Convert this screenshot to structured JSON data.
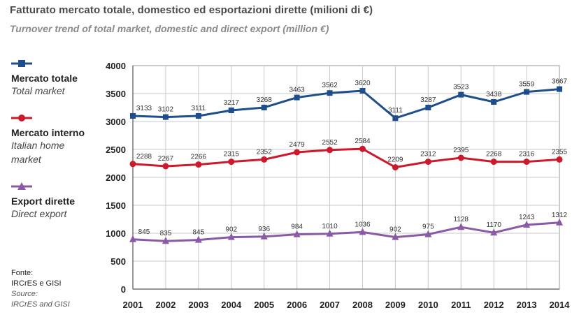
{
  "header": {
    "title": "Fatturato mercato totale, domestico ed esportazioni dirette (milioni di €)",
    "subtitle": "Turnover trend of total market, domestic and direct export (million €)"
  },
  "legend": [
    {
      "label": "Mercato totale",
      "sub": "Total market",
      "color": "#1f4e8c",
      "marker": "square"
    },
    {
      "label": "Mercato interno",
      "sub": "Italian home market",
      "color": "#cc1a2c",
      "marker": "circle"
    },
    {
      "label": "Export dirette",
      "sub": "Direct export",
      "color": "#8a5aa8",
      "marker": "triangle"
    }
  ],
  "source": {
    "label": "Fonte:",
    "text": "IRCrES e GISI",
    "label_en": "Source:",
    "text_en": "IRCrES and GISI"
  },
  "chart_data": {
    "type": "line",
    "x": [
      "2001",
      "2002",
      "2003",
      "2004",
      "2005",
      "2006",
      "2007",
      "2008",
      "2009",
      "2010",
      "2011",
      "2012",
      "2013",
      "2014"
    ],
    "ylim": [
      0,
      4000
    ],
    "yticks": [
      0,
      500,
      1000,
      1500,
      2000,
      2500,
      3000,
      3500,
      4000
    ],
    "grid": true,
    "series": [
      {
        "name": "Mercato totale",
        "color": "#1f4e8c",
        "marker": "square",
        "values": [
          3133,
          3102,
          3111,
          3217,
          3268,
          3463,
          3562,
          3620,
          3111,
          3287,
          3523,
          3438,
          3559,
          3667
        ],
        "plot_values": [
          3100,
          3080,
          3100,
          3200,
          3250,
          3430,
          3510,
          3550,
          3060,
          3250,
          3480,
          3350,
          3530,
          3580
        ]
      },
      {
        "name": "Mercato interno",
        "color": "#cc1a2c",
        "marker": "circle",
        "values": [
          2288,
          2267,
          2266,
          2315,
          2352,
          2479,
          2552,
          2584,
          2209,
          2312,
          2395,
          2268,
          2316,
          2355
        ],
        "plot_values": [
          2240,
          2200,
          2230,
          2280,
          2320,
          2450,
          2490,
          2510,
          2180,
          2280,
          2350,
          2280,
          2280,
          2320
        ]
      },
      {
        "name": "Export dirette",
        "color": "#8a5aa8",
        "marker": "triangle",
        "values": [
          845,
          835,
          845,
          902,
          936,
          984,
          1010,
          1036,
          902,
          975,
          1128,
          1170,
          1243,
          1312
        ],
        "plot_values": [
          890,
          860,
          880,
          930,
          940,
          980,
          990,
          1020,
          930,
          980,
          1110,
          1010,
          1150,
          1190
        ]
      }
    ]
  }
}
